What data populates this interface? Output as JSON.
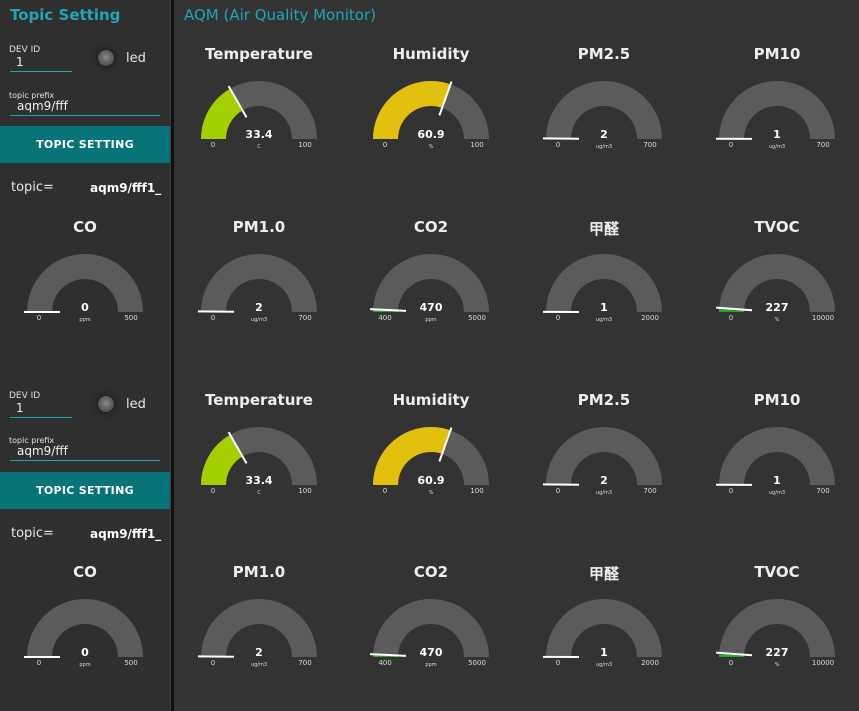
{
  "sidebar": {
    "title": "Topic Setting",
    "panels": [
      {
        "dev_id_label": "DEV ID",
        "dev_id_value": "1",
        "led_label": "led",
        "prefix_label": "topic prefix",
        "prefix_value": "aqm9/fff",
        "button_label": "TOPIC SETTING",
        "topic_label": "topic=",
        "topic_value": "aqm9/fff1_",
        "gauge": {
          "title": "CO",
          "value": "0",
          "unit": "ppm",
          "min": "0",
          "max": "500",
          "fill": 0.0,
          "color": "#4cae4c"
        }
      },
      {
        "dev_id_label": "DEV ID",
        "dev_id_value": "1",
        "led_label": "led",
        "prefix_label": "topic prefix",
        "prefix_value": "aqm9/fff",
        "button_label": "TOPIC SETTING",
        "topic_label": "topic=",
        "topic_value": "aqm9/fff1_",
        "gauge": {
          "title": "CO",
          "value": "0",
          "unit": "ppm",
          "min": "0",
          "max": "500",
          "fill": 0.0,
          "color": "#4cae4c"
        }
      }
    ]
  },
  "main": {
    "title": "AQM (Air Quality Monitor)",
    "gauges": [
      {
        "title": "Temperature",
        "value": "33.4",
        "unit": "C",
        "min": "0",
        "max": "100",
        "fill": 0.334,
        "color": "#a3d000"
      },
      {
        "title": "Humidity",
        "value": "60.9",
        "unit": "%",
        "min": "0",
        "max": "100",
        "fill": 0.609,
        "color": "#e2c10e"
      },
      {
        "title": "PM2.5",
        "value": "2",
        "unit": "ug/m3",
        "min": "0",
        "max": "700",
        "fill": 0.003,
        "color": "#4cae4c"
      },
      {
        "title": "PM10",
        "value": "1",
        "unit": "ug/m3",
        "min": "0",
        "max": "700",
        "fill": 0.001,
        "color": "#4cae4c"
      },
      {
        "title": "PM1.0",
        "value": "2",
        "unit": "ug/m3",
        "min": "0",
        "max": "700",
        "fill": 0.003,
        "color": "#4cae4c"
      },
      {
        "title": "CO2",
        "value": "470",
        "unit": "ppm",
        "min": "400",
        "max": "5000",
        "fill": 0.015,
        "color": "#22a822"
      },
      {
        "title": "甲醛",
        "value": "1",
        "unit": "ug/m3",
        "min": "0",
        "max": "2000",
        "fill": 0.0005,
        "color": "#4cae4c"
      },
      {
        "title": "TVOC",
        "value": "227",
        "unit": "%",
        "min": "0",
        "max": "10000",
        "fill": 0.0227,
        "color": "#22a822"
      },
      {
        "title": "Temperature",
        "value": "33.4",
        "unit": "C",
        "min": "0",
        "max": "100",
        "fill": 0.334,
        "color": "#a3d000"
      },
      {
        "title": "Humidity",
        "value": "60.9",
        "unit": "%",
        "min": "0",
        "max": "100",
        "fill": 0.609,
        "color": "#e2c10e"
      },
      {
        "title": "PM2.5",
        "value": "2",
        "unit": "ug/m3",
        "min": "0",
        "max": "700",
        "fill": 0.003,
        "color": "#4cae4c"
      },
      {
        "title": "PM10",
        "value": "1",
        "unit": "ug/m3",
        "min": "0",
        "max": "700",
        "fill": 0.001,
        "color": "#4cae4c"
      },
      {
        "title": "PM1.0",
        "value": "2",
        "unit": "ug/m3",
        "min": "0",
        "max": "700",
        "fill": 0.003,
        "color": "#4cae4c"
      },
      {
        "title": "CO2",
        "value": "470",
        "unit": "ppm",
        "min": "400",
        "max": "5000",
        "fill": 0.015,
        "color": "#22a822"
      },
      {
        "title": "甲醛",
        "value": "1",
        "unit": "ug/m3",
        "min": "0",
        "max": "2000",
        "fill": 0.0005,
        "color": "#4cae4c"
      },
      {
        "title": "TVOC",
        "value": "227",
        "unit": "%",
        "min": "0",
        "max": "10000",
        "fill": 0.0227,
        "color": "#22a822"
      }
    ]
  },
  "style": {
    "accent": "#1ea8b6",
    "button_bg": "#097478",
    "gauge_track": "#5b5b5b",
    "needle": "#ffffff"
  }
}
